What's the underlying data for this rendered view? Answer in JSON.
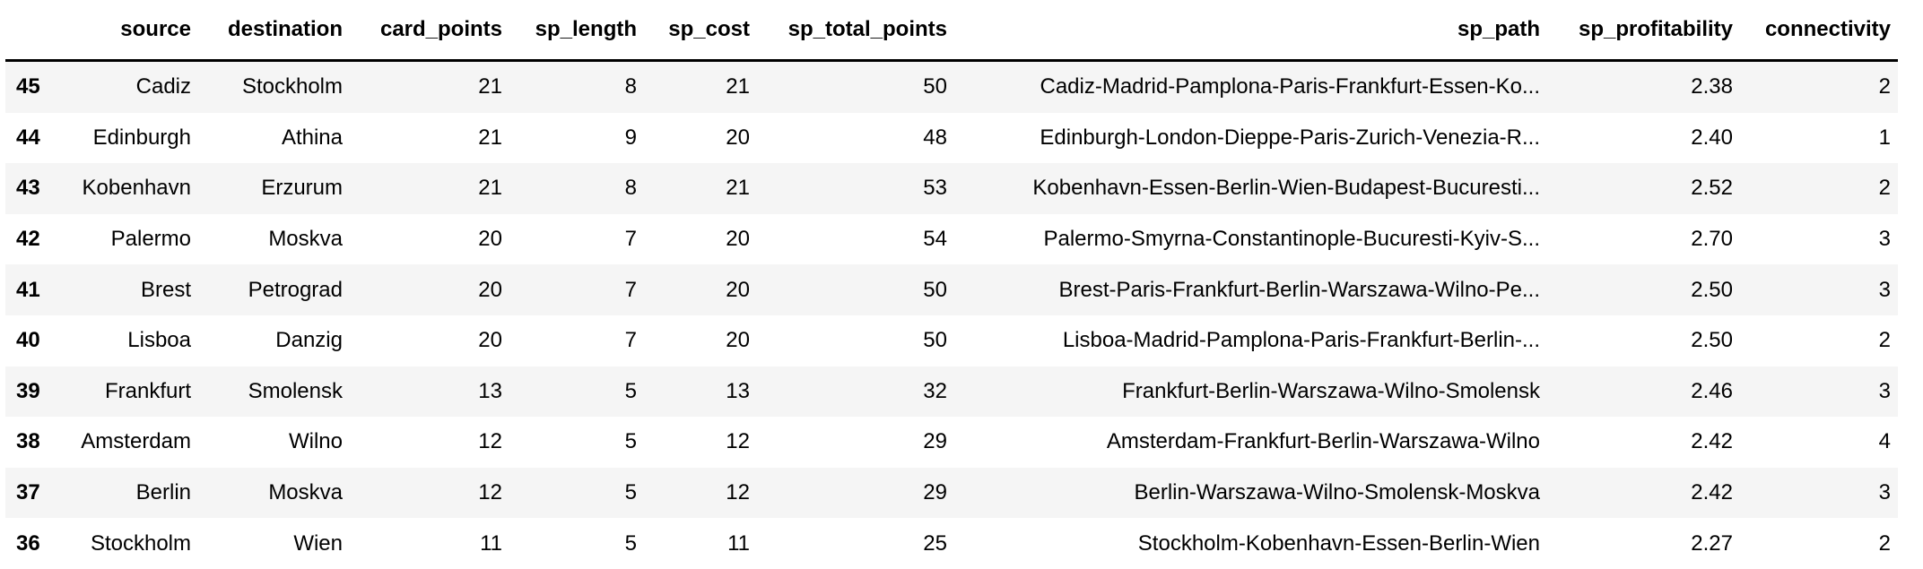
{
  "table": {
    "columns": [
      "",
      "source",
      "destination",
      "card_points",
      "sp_length",
      "sp_cost",
      "sp_total_points",
      "sp_path",
      "sp_profitability",
      "connectivity"
    ],
    "rows": [
      [
        "45",
        "Cadiz",
        "Stockholm",
        "21",
        "8",
        "21",
        "50",
        "Cadiz-Madrid-Pamplona-Paris-Frankfurt-Essen-Ko...",
        "2.38",
        "2"
      ],
      [
        "44",
        "Edinburgh",
        "Athina",
        "21",
        "9",
        "20",
        "48",
        "Edinburgh-London-Dieppe-Paris-Zurich-Venezia-R...",
        "2.40",
        "1"
      ],
      [
        "43",
        "Kobenhavn",
        "Erzurum",
        "21",
        "8",
        "21",
        "53",
        "Kobenhavn-Essen-Berlin-Wien-Budapest-Bucuresti...",
        "2.52",
        "2"
      ],
      [
        "42",
        "Palermo",
        "Moskva",
        "20",
        "7",
        "20",
        "54",
        "Palermo-Smyrna-Constantinople-Bucuresti-Kyiv-S...",
        "2.70",
        "3"
      ],
      [
        "41",
        "Brest",
        "Petrograd",
        "20",
        "7",
        "20",
        "50",
        "Brest-Paris-Frankfurt-Berlin-Warszawa-Wilno-Pe...",
        "2.50",
        "3"
      ],
      [
        "40",
        "Lisboa",
        "Danzig",
        "20",
        "7",
        "20",
        "50",
        "Lisboa-Madrid-Pamplona-Paris-Frankfurt-Berlin-...",
        "2.50",
        "2"
      ],
      [
        "39",
        "Frankfurt",
        "Smolensk",
        "13",
        "5",
        "13",
        "32",
        "Frankfurt-Berlin-Warszawa-Wilno-Smolensk",
        "2.46",
        "3"
      ],
      [
        "38",
        "Amsterdam",
        "Wilno",
        "12",
        "5",
        "12",
        "29",
        "Amsterdam-Frankfurt-Berlin-Warszawa-Wilno",
        "2.42",
        "4"
      ],
      [
        "37",
        "Berlin",
        "Moskva",
        "12",
        "5",
        "12",
        "29",
        "Berlin-Warszawa-Wilno-Smolensk-Moskva",
        "2.42",
        "3"
      ],
      [
        "36",
        "Stockholm",
        "Wien",
        "11",
        "5",
        "11",
        "25",
        "Stockholm-Kobenhavn-Essen-Berlin-Wien",
        "2.27",
        "2"
      ]
    ]
  }
}
